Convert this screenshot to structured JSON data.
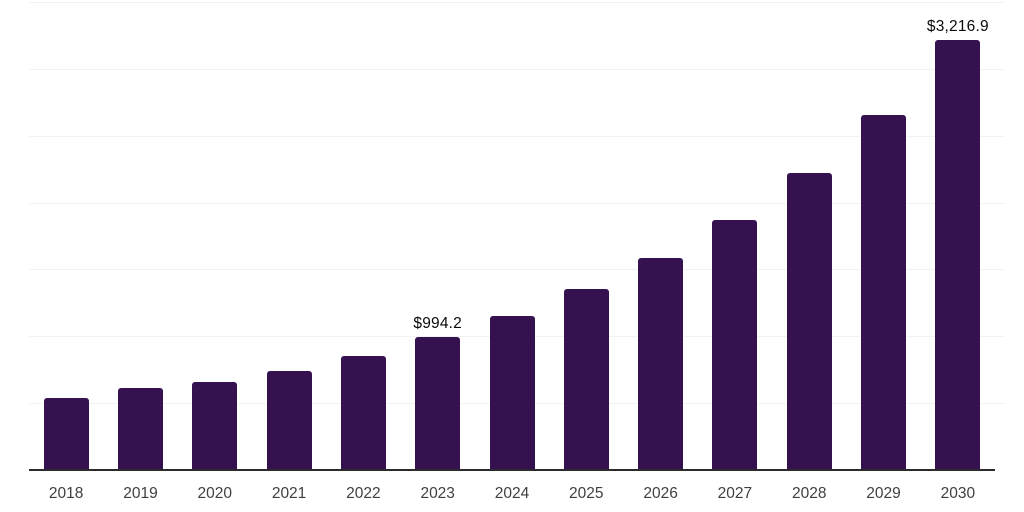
{
  "chart_data": {
    "type": "bar",
    "title": "",
    "xlabel": "",
    "ylabel": "",
    "categories": [
      "2018",
      "2019",
      "2020",
      "2021",
      "2022",
      "2023",
      "2024",
      "2025",
      "2026",
      "2027",
      "2028",
      "2029",
      "2030"
    ],
    "values": [
      535,
      612,
      655,
      740,
      853,
      994.2,
      1154,
      1354,
      1584,
      1870,
      2220,
      2658,
      3216.9
    ],
    "bar_labels": [
      "",
      "",
      "",
      "",
      "",
      "$994.2",
      "",
      "",
      "",
      "",
      "",
      "",
      "$3,216.9"
    ],
    "ylim": [
      0,
      3500
    ],
    "gridline_step": 500,
    "grid": true,
    "legend": false,
    "colors": {
      "bar": "#351150",
      "axis_line": "#2b2b2b",
      "gridline": "#f2f2f2",
      "tick_label": "#3f3f3f",
      "value_label": "#0a0a0a",
      "background": "#ffffff"
    }
  }
}
